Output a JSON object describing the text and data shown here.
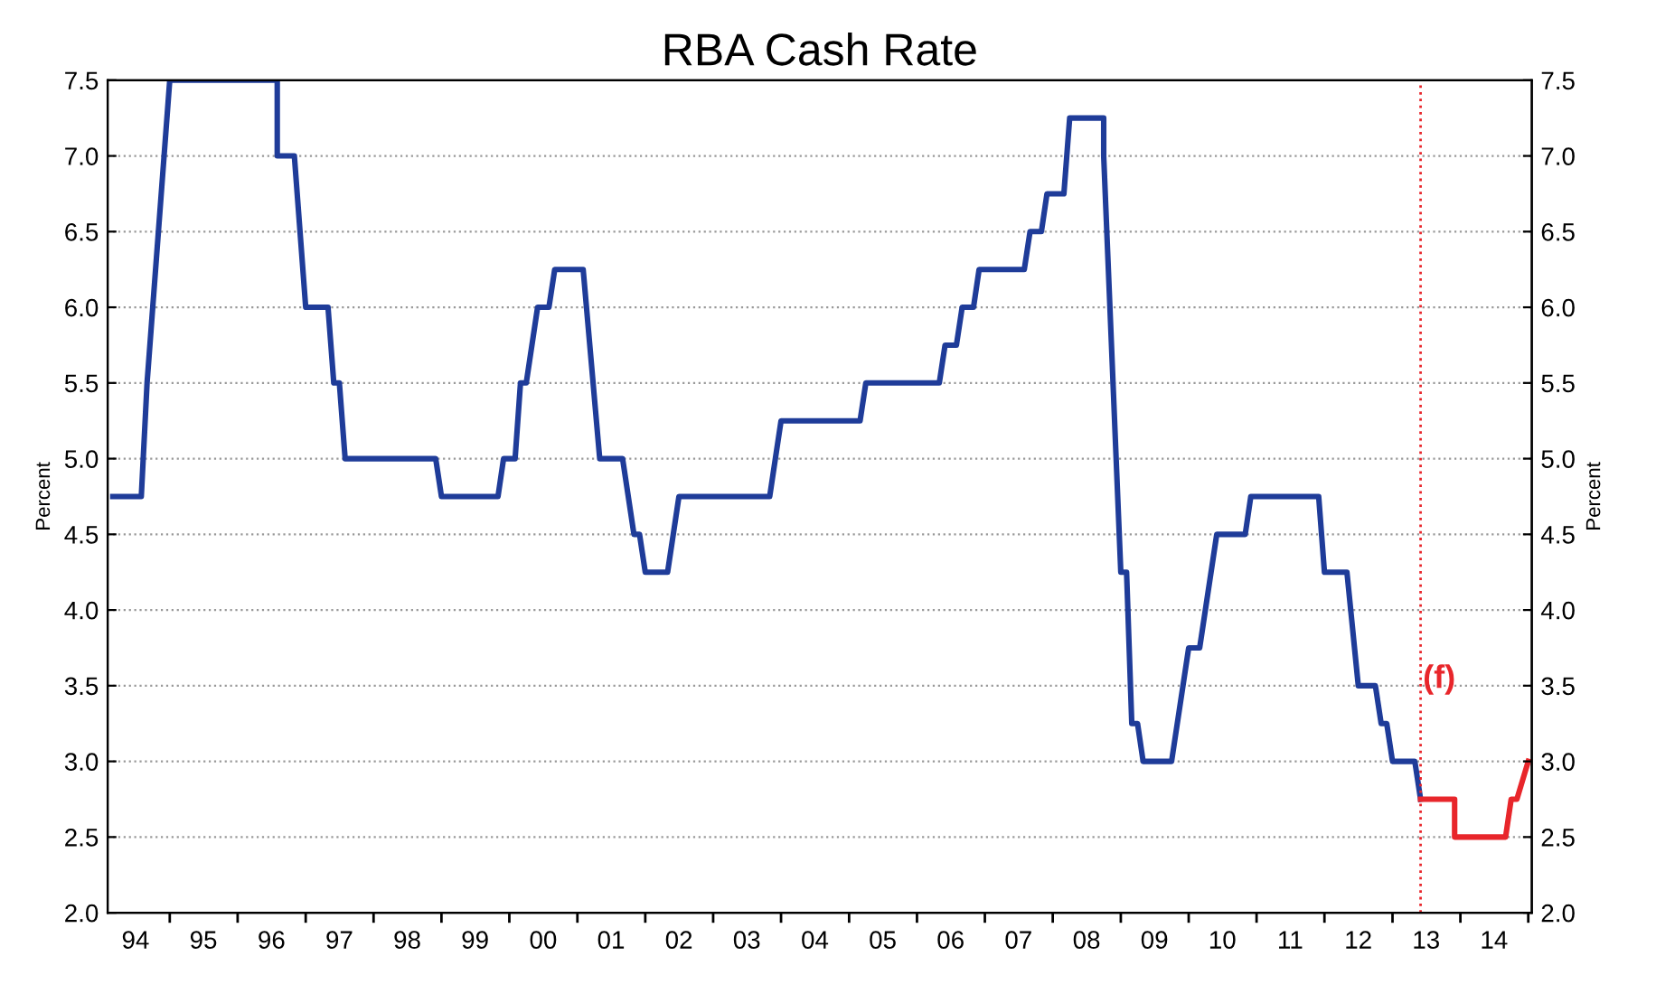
{
  "chart_data": {
    "type": "line",
    "title": "RBA Cash Rate",
    "ylabel": "Percent",
    "y2label": "Percent",
    "xlim": [
      "1994-02",
      "2015-01-20"
    ],
    "ylim": [
      2.0,
      7.5
    ],
    "yticks": [
      {
        "value": 2.0,
        "label": "2.0"
      },
      {
        "value": 2.5,
        "label": "2.5"
      },
      {
        "value": 3.0,
        "label": "3.0"
      },
      {
        "value": 3.5,
        "label": "3.5"
      },
      {
        "value": 4.0,
        "label": "4.0"
      },
      {
        "value": 4.5,
        "label": "4.5"
      },
      {
        "value": 5.0,
        "label": "5.0"
      },
      {
        "value": 5.5,
        "label": "5.5"
      },
      {
        "value": 6.0,
        "label": "6.0"
      },
      {
        "value": 6.5,
        "label": "6.5"
      },
      {
        "value": 7.0,
        "label": "7.0"
      },
      {
        "value": 7.5,
        "label": "7.5"
      }
    ],
    "y2lim": [
      2.0,
      7.5
    ],
    "y2ticks": [
      {
        "value": 2.0,
        "label": "2.0"
      },
      {
        "value": 2.5,
        "label": "2.5"
      },
      {
        "value": 3.0,
        "label": "3.0"
      },
      {
        "value": 3.5,
        "label": "3.5"
      },
      {
        "value": 4.0,
        "label": "4.0"
      },
      {
        "value": 4.5,
        "label": "4.5"
      },
      {
        "value": 5.0,
        "label": "5.0"
      },
      {
        "value": 5.5,
        "label": "5.5"
      },
      {
        "value": 6.0,
        "label": "6.0"
      },
      {
        "value": 6.5,
        "label": "6.5"
      },
      {
        "value": 7.0,
        "label": "7.0"
      },
      {
        "value": 7.5,
        "label": "7.5"
      }
    ],
    "xticks": [
      {
        "value": "1994-07",
        "label": "94"
      },
      {
        "value": "1995-07",
        "label": "95"
      },
      {
        "value": "1996-07",
        "label": "96"
      },
      {
        "value": "1997-07",
        "label": "97"
      },
      {
        "value": "1998-07",
        "label": "98"
      },
      {
        "value": "1999-07",
        "label": "99"
      },
      {
        "value": "2000-07",
        "label": "00"
      },
      {
        "value": "2001-07",
        "label": "01"
      },
      {
        "value": "2002-07",
        "label": "02"
      },
      {
        "value": "2003-07",
        "label": "03"
      },
      {
        "value": "2004-07",
        "label": "04"
      },
      {
        "value": "2005-07",
        "label": "05"
      },
      {
        "value": "2006-07",
        "label": "06"
      },
      {
        "value": "2007-07",
        "label": "07"
      },
      {
        "value": "2008-07",
        "label": "08"
      },
      {
        "value": "2009-07",
        "label": "09"
      },
      {
        "value": "2010-07",
        "label": "10"
      },
      {
        "value": "2011-07",
        "label": "11"
      },
      {
        "value": "2012-07",
        "label": "12"
      },
      {
        "value": "2013-07",
        "label": "13"
      },
      {
        "value": "2014-07",
        "label": "14"
      },
      {
        "value": "1995-01",
        "label": null
      },
      {
        "value": "1996-01",
        "label": null
      },
      {
        "value": "1997-01",
        "label": null
      },
      {
        "value": "1998-01",
        "label": null
      },
      {
        "value": "1999-01",
        "label": null
      },
      {
        "value": "2000-01",
        "label": null
      },
      {
        "value": "2001-01",
        "label": null
      },
      {
        "value": "2002-01",
        "label": null
      },
      {
        "value": "2003-01",
        "label": null
      },
      {
        "value": "2004-01",
        "label": null
      },
      {
        "value": "2005-01",
        "label": null
      },
      {
        "value": "2006-01",
        "label": null
      },
      {
        "value": "2007-01",
        "label": null
      },
      {
        "value": "2008-01",
        "label": null
      },
      {
        "value": "2009-01",
        "label": null
      },
      {
        "value": "2010-01",
        "label": null
      },
      {
        "value": "2011-01",
        "label": null
      },
      {
        "value": "2012-01",
        "label": null
      },
      {
        "value": "2013-01",
        "label": null
      },
      {
        "value": "2014-01",
        "label": null
      },
      {
        "value": "2015-01",
        "label": null
      }
    ],
    "grid": "y",
    "legend": false,
    "marker": "none",
    "line_style": "solid",
    "series": [
      {
        "color": "#1f3c99",
        "x": [
          "1994-03",
          "1994-08",
          "1994-09",
          "1994-11",
          "1995-01",
          "1996-08",
          "1996-08",
          "1996-11",
          "1997-01",
          "1997-05",
          "1997-06",
          "1997-07",
          "1997-08",
          "1998-12",
          "1999-01",
          "1999-11",
          "1999-12",
          "2000-02",
          "2000-03",
          "2000-04",
          "2000-06",
          "2000-08",
          "2000-09",
          "2001-02",
          "2001-05",
          "2001-09",
          "2001-11",
          "2001-12",
          "2002-01",
          "2002-05",
          "2002-07",
          "2003-11",
          "2004-01",
          "2005-03",
          "2005-04",
          "2006-05",
          "2006-06",
          "2006-08",
          "2006-09",
          "2006-11",
          "2006-12",
          "2007-08",
          "2007-09",
          "2007-11",
          "2007-12",
          "2008-03",
          "2008-04",
          "2008-10",
          "2008-10",
          "2009-01",
          "2009-02",
          "2009-03",
          "2009-04",
          "2009-05",
          "2009-10",
          "2010-01",
          "2010-03",
          "2010-06",
          "2010-11",
          "2010-12",
          "2011-12",
          "2012-01",
          "2012-05",
          "2012-07",
          "2012-10",
          "2012-11",
          "2012-12",
          "2013-01",
          "2013-05",
          "2013-06"
        ],
        "values": [
          4.75,
          4.75,
          5.5,
          6.5,
          7.5,
          7.5,
          7.0,
          7.0,
          6.0,
          6.0,
          5.5,
          5.5,
          5.0,
          5.0,
          4.75,
          4.75,
          5.0,
          5.0,
          5.5,
          5.5,
          6.0,
          6.0,
          6.25,
          6.25,
          5.0,
          5.0,
          4.5,
          4.5,
          4.25,
          4.25,
          4.75,
          4.75,
          5.25,
          5.25,
          5.5,
          5.5,
          5.75,
          5.75,
          6.0,
          6.0,
          6.25,
          6.25,
          6.5,
          6.5,
          6.75,
          6.75,
          7.25,
          7.25,
          7.0,
          4.25,
          4.25,
          3.25,
          3.25,
          3.0,
          3.0,
          3.75,
          3.75,
          4.5,
          4.5,
          4.75,
          4.75,
          4.25,
          4.25,
          3.5,
          3.5,
          3.25,
          3.25,
          3.0,
          3.0,
          2.75
        ]
      },
      {
        "color": "#e8262b",
        "x": [
          "2013-06",
          "2013-12",
          "2013-12",
          "2014-09",
          "2014-10",
          "2014-11",
          "2015-01"
        ],
        "values": [
          2.75,
          2.75,
          2.5,
          2.5,
          2.75,
          2.75,
          3.0
        ]
      }
    ],
    "ref_lines": [
      {
        "axis": "x",
        "value": "2013-06",
        "label": null,
        "color": "#e8262b",
        "line_style": "dotted"
      }
    ],
    "annotations": [
      "(f)"
    ]
  }
}
